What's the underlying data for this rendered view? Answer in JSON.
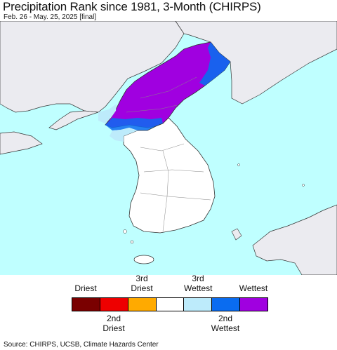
{
  "header": {
    "title": "Precipitation Rank since 1981, 3-Month (CHIRPS)",
    "subtitle": "Feb. 26 - May. 25, 2025 [final]"
  },
  "colors": {
    "sea": "#bfffff",
    "land_other": "#ebebf0",
    "land_normal": "#ffffff",
    "border": "#333333"
  },
  "legend": {
    "top_labels": [
      "Driest",
      "3rd\nDriest",
      "3rd\nWettest",
      "Wettest"
    ],
    "bottom_labels": [
      "2nd\nDriest",
      "2nd\nWettest"
    ],
    "swatches": [
      {
        "name": "driest",
        "color": "#7a0000"
      },
      {
        "name": "2nd-driest",
        "color": "#ee0000"
      },
      {
        "name": "3rd-driest",
        "color": "#ffaa00"
      },
      {
        "name": "normal",
        "color": "#ffffff"
      },
      {
        "name": "3rd-wettest",
        "color": "#bdebfb"
      },
      {
        "name": "2nd-wettest",
        "color": "#0a6cf0"
      },
      {
        "name": "wettest",
        "color": "#a000e0"
      }
    ]
  },
  "footer": {
    "source": "Source: CHIRPS, UCSB, Climate Hazards Center"
  }
}
